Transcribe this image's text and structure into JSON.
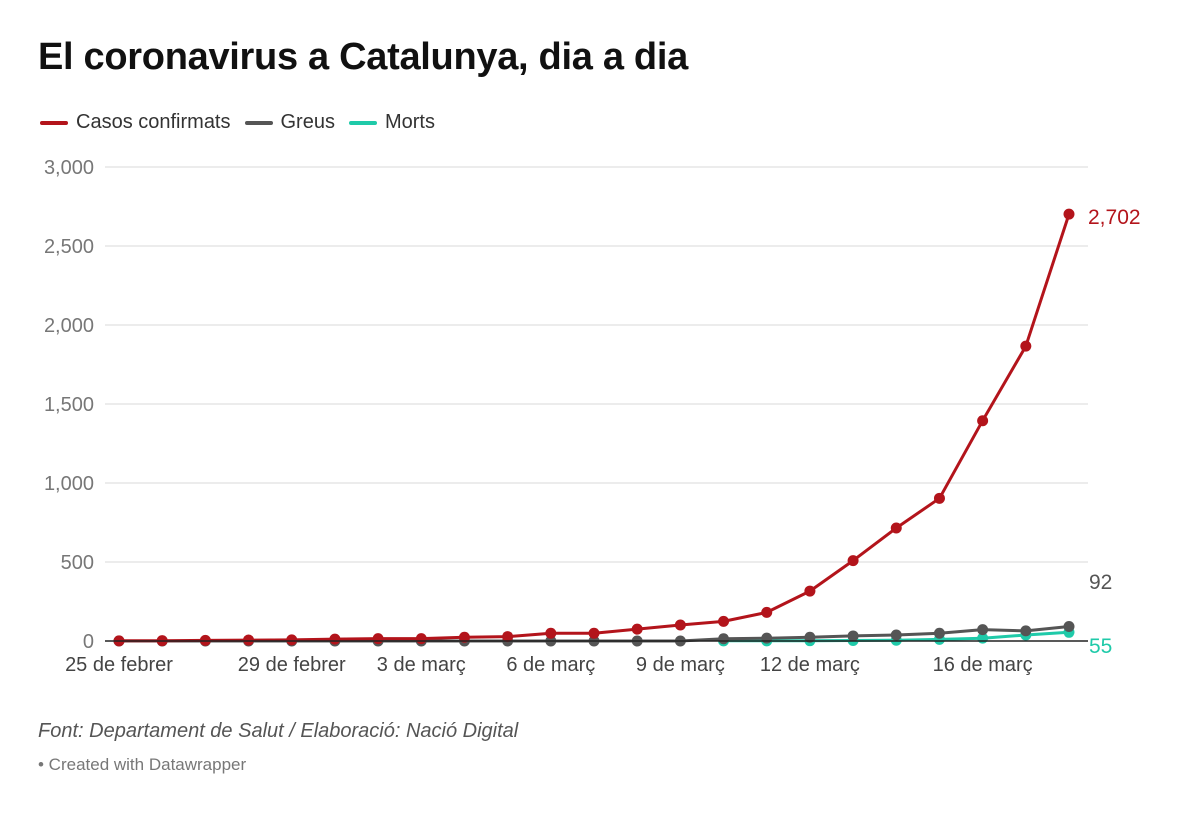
{
  "title": "El coronavirus a Catalunya, dia a dia",
  "source_text": "Font: Departament de Salut / Elaboració: Nació Digital",
  "credit_text": "• Created with Datawrapper",
  "colors": {
    "casos": "#b3141b",
    "greus": "#555555",
    "morts": "#1fcaa9",
    "grid": "#d9d9d9",
    "axis_text": "#777777"
  },
  "chart_data": {
    "type": "line",
    "title": "El coronavirus a Catalunya, dia a dia",
    "xlabel": "",
    "ylabel": "",
    "ylim": [
      0,
      3000
    ],
    "yticks": [
      0,
      500,
      1000,
      1500,
      2000,
      2500,
      3000
    ],
    "ytick_labels": [
      "0",
      "500",
      "1,000",
      "1,500",
      "2,000",
      "2,500",
      "3,000"
    ],
    "grid": true,
    "legend_position": "top-left",
    "categories": [
      "25 feb",
      "26 feb",
      "27 feb",
      "28 feb",
      "29 feb",
      "1 mar",
      "2 mar",
      "3 mar",
      "4 mar",
      "5 mar",
      "6 mar",
      "7 mar",
      "8 mar",
      "9 mar",
      "10 mar",
      "11 mar",
      "12 mar",
      "13 mar",
      "14 mar",
      "15 mar",
      "16 mar",
      "17 mar",
      "18 mar"
    ],
    "xtick_labels": [
      {
        "index": 0,
        "label": "25 de febrer"
      },
      {
        "index": 4,
        "label": "29 de febrer"
      },
      {
        "index": 7,
        "label": "3 de març"
      },
      {
        "index": 10,
        "label": "6 de març"
      },
      {
        "index": 13,
        "label": "9 de març"
      },
      {
        "index": 16,
        "label": "12 de març"
      },
      {
        "index": 20,
        "label": "16 de març"
      }
    ],
    "series": [
      {
        "name": "Casos confirmats",
        "key": "casos",
        "values": [
          1,
          2,
          4,
          6,
          7,
          12,
          15,
          15,
          24,
          28,
          49,
          49,
          75,
          101,
          124,
          181,
          316,
          509,
          715,
          903,
          1394,
          1866,
          2702
        ],
        "end_label": "2,702"
      },
      {
        "name": "Greus",
        "key": "greus",
        "values": [
          0,
          0,
          0,
          0,
          0,
          0,
          0,
          0,
          0,
          0,
          0,
          0,
          0,
          0,
          14,
          18,
          24,
          32,
          38,
          49,
          72,
          64,
          92
        ],
        "end_label": "92"
      },
      {
        "name": "Morts",
        "key": "morts",
        "values": [
          null,
          null,
          null,
          null,
          null,
          null,
          null,
          null,
          null,
          null,
          null,
          null,
          null,
          null,
          1,
          1,
          2,
          3,
          5,
          10,
          18,
          38,
          55
        ],
        "end_label": "55"
      }
    ]
  }
}
